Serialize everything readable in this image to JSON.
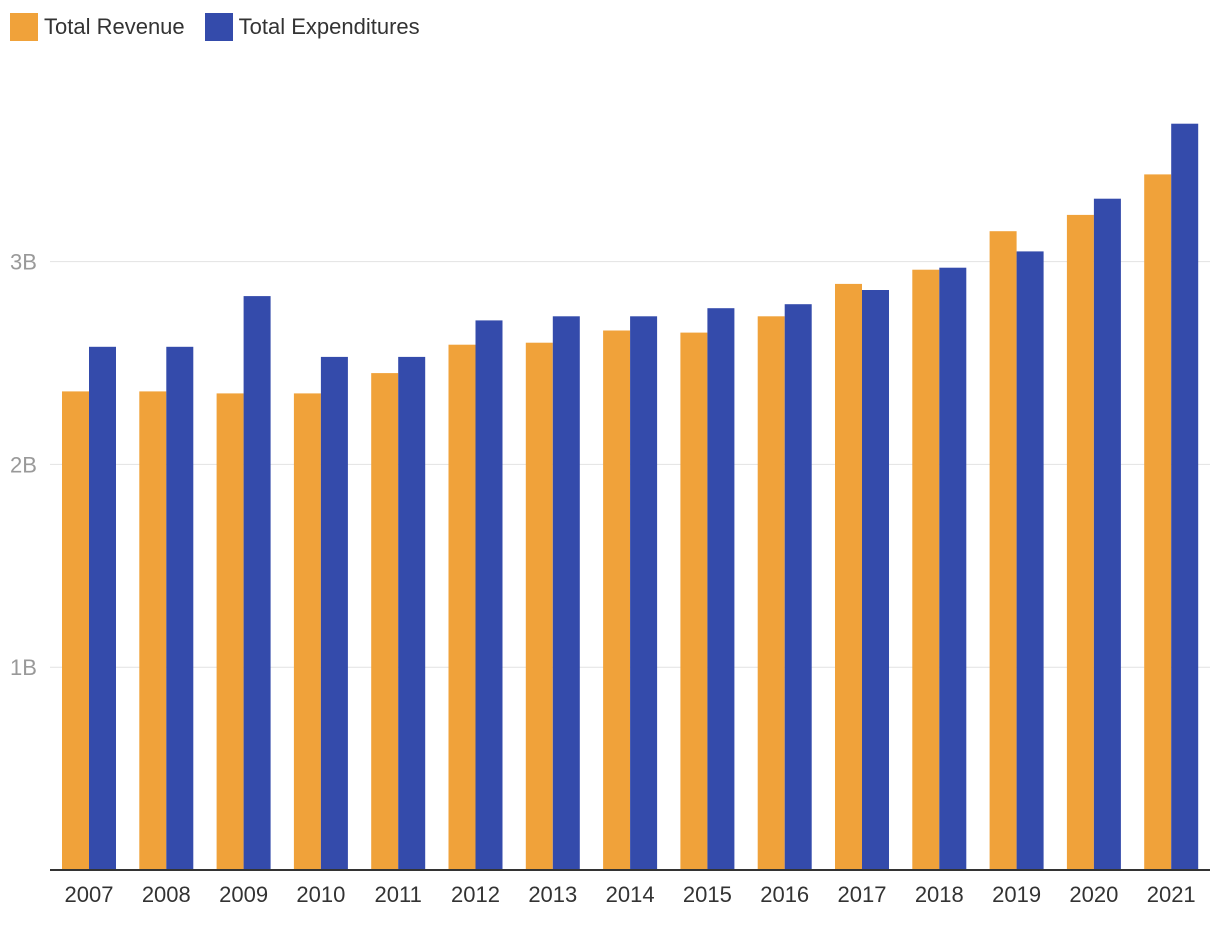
{
  "chart_data": {
    "type": "bar",
    "categories": [
      "2007",
      "2008",
      "2009",
      "2010",
      "2011",
      "2012",
      "2013",
      "2014",
      "2015",
      "2016",
      "2017",
      "2018",
      "2019",
      "2020",
      "2021"
    ],
    "series": [
      {
        "name": "Total Revenue",
        "color": "#F0A23A",
        "values": [
          2.36,
          2.36,
          2.35,
          2.35,
          2.45,
          2.59,
          2.6,
          2.66,
          2.65,
          2.73,
          2.89,
          2.96,
          3.15,
          3.23,
          3.43
        ]
      },
      {
        "name": "Total Expenditures",
        "color": "#344BAB",
        "values": [
          2.58,
          2.58,
          2.83,
          2.53,
          2.53,
          2.71,
          2.73,
          2.73,
          2.77,
          2.79,
          2.86,
          2.97,
          3.05,
          3.31,
          3.68
        ]
      }
    ],
    "yticks": [
      {
        "value": 1,
        "label": "1B"
      },
      {
        "value": 2,
        "label": "2B"
      },
      {
        "value": 3,
        "label": "3B"
      }
    ],
    "ylim": [
      0,
      3.994
    ],
    "unit": "billions",
    "title": "",
    "xlabel": "",
    "ylabel": "",
    "grid": true,
    "legend": "top-left"
  }
}
